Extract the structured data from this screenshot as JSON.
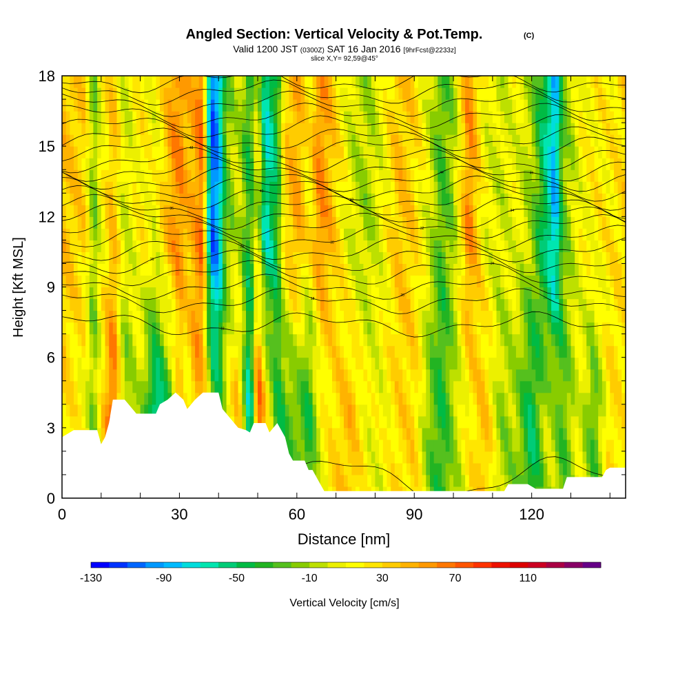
{
  "chart_data": {
    "type": "heatmap",
    "title": "Angled Section: Vertical Velocity & Pot.Temp.",
    "title_mark": "(C)",
    "subtitle": {
      "valid": "Valid 1200 JST",
      "utc": "(0300Z)",
      "date": "SAT 16 Jan 2016",
      "forecast": "[9hrFcst@2233z]"
    },
    "slice_label": "slice X,Y= 92,59@45°",
    "xlabel": "Distance [nm]",
    "ylabel": "Height [Kft MSL]",
    "xlim": [
      0,
      144
    ],
    "ylim": [
      0,
      18
    ],
    "x_ticks": [
      0,
      30,
      60,
      90,
      120
    ],
    "y_ticks": [
      0,
      3,
      6,
      9,
      12,
      15,
      18
    ],
    "x_tick_labels": [
      "0",
      "30",
      "60",
      "90",
      "120"
    ],
    "y_tick_labels": [
      "0",
      "3",
      "6",
      "9",
      "12",
      "15",
      "18"
    ],
    "colorbar": {
      "label": "Vertical Velocity [cm/s]",
      "min": -130,
      "max": 150,
      "step": 10,
      "tick_labels": [
        "-130",
        "-90",
        "-50",
        "-10",
        "30",
        "70",
        "110"
      ],
      "tick_values": [
        -130,
        -90,
        -50,
        -10,
        30,
        70,
        110
      ],
      "colors": [
        "#0000ff",
        "#0033ff",
        "#0066ff",
        "#0099ff",
        "#00bbff",
        "#00dddd",
        "#00e6b0",
        "#00cc77",
        "#00bb44",
        "#22b422",
        "#55c01e",
        "#88cc00",
        "#bde000",
        "#ecf000",
        "#ffff00",
        "#ffe600",
        "#ffcc00",
        "#ffb300",
        "#ff9900",
        "#ff7700",
        "#ff5500",
        "#ff3300",
        "#ee1100",
        "#dd0000",
        "#cc0022",
        "#aa0044",
        "#880066",
        "#660088"
      ]
    },
    "terrain": [
      [
        0,
        2.6
      ],
      [
        3,
        2.9
      ],
      [
        9,
        2.9
      ],
      [
        10,
        2.3
      ],
      [
        11,
        2.6
      ],
      [
        12,
        3.2
      ],
      [
        13,
        4.2
      ],
      [
        16,
        4.2
      ],
      [
        17,
        4.0
      ],
      [
        19,
        3.6
      ],
      [
        24,
        3.6
      ],
      [
        25,
        4.0
      ],
      [
        27,
        4.2
      ],
      [
        29,
        4.5
      ],
      [
        31,
        4.2
      ],
      [
        32,
        3.8
      ],
      [
        34,
        4.2
      ],
      [
        36,
        4.5
      ],
      [
        40,
        4.5
      ],
      [
        41,
        3.8
      ],
      [
        43,
        3.4
      ],
      [
        45,
        3.0
      ],
      [
        47,
        2.9
      ],
      [
        48,
        2.8
      ],
      [
        49,
        3.2
      ],
      [
        52,
        3.2
      ],
      [
        53,
        2.8
      ],
      [
        55,
        3.2
      ],
      [
        57,
        2.6
      ],
      [
        58,
        1.9
      ],
      [
        59,
        1.6
      ],
      [
        62,
        1.6
      ],
      [
        63,
        1.2
      ],
      [
        64,
        1.2
      ],
      [
        65,
        0.9
      ],
      [
        66,
        0.6
      ],
      [
        67,
        0.3
      ],
      [
        113,
        0.3
      ],
      [
        114,
        0.6
      ],
      [
        119,
        0.6
      ],
      [
        121,
        0.4
      ],
      [
        128,
        0.4
      ],
      [
        129,
        0.9
      ],
      [
        138,
        0.9
      ],
      [
        139,
        1.2
      ],
      [
        140,
        1.3
      ],
      [
        144,
        1.3
      ]
    ],
    "w_samples": {
      "note_units": "cm/s",
      "columns_x": [
        0,
        6,
        8,
        10,
        13,
        16,
        20,
        24,
        28,
        30,
        32,
        34,
        36,
        38,
        40,
        42,
        45,
        48,
        50,
        52,
        55,
        57,
        60,
        63,
        66,
        70,
        74,
        78,
        82,
        86,
        90,
        94,
        97,
        100,
        104,
        108,
        112,
        116,
        120,
        124,
        126,
        128,
        132,
        136,
        140,
        144
      ],
      "lower_w": [
        30,
        10,
        -20,
        20,
        80,
        -20,
        0,
        -70,
        -20,
        30,
        10,
        50,
        40,
        -10,
        -40,
        10,
        40,
        -80,
        80,
        30,
        -40,
        -30,
        -20,
        -40,
        10,
        30,
        40,
        10,
        10,
        30,
        30,
        -20,
        -40,
        -10,
        20,
        40,
        -10,
        -10,
        -50,
        0,
        -10,
        -30,
        10,
        -30,
        30,
        20
      ],
      "upper_w": [
        40,
        30,
        -20,
        10,
        40,
        0,
        20,
        10,
        50,
        60,
        40,
        50,
        70,
        -110,
        -90,
        -20,
        0,
        -40,
        10,
        -70,
        -40,
        30,
        50,
        20,
        60,
        30,
        0,
        -10,
        10,
        40,
        30,
        0,
        -30,
        -10,
        60,
        10,
        0,
        10,
        -10,
        -60,
        -90,
        -20,
        10,
        20,
        20,
        30
      ]
    },
    "theta_contour_heights_at_left": [
      0.8,
      7.4,
      8.4,
      9.0,
      9.6,
      10.1,
      10.6,
      11.1,
      11.6,
      12.0,
      12.4,
      12.8,
      13.2,
      13.6,
      14.0,
      14.4,
      14.9,
      15.3,
      15.8,
      16.3,
      16.8,
      17.3,
      17.8
    ],
    "theta_contour_labels": [
      "18",
      "18",
      "20",
      "24",
      "26",
      "28",
      "30",
      "32",
      "34",
      "36",
      "40",
      "42",
      "44",
      "46",
      "48",
      "50"
    ]
  }
}
